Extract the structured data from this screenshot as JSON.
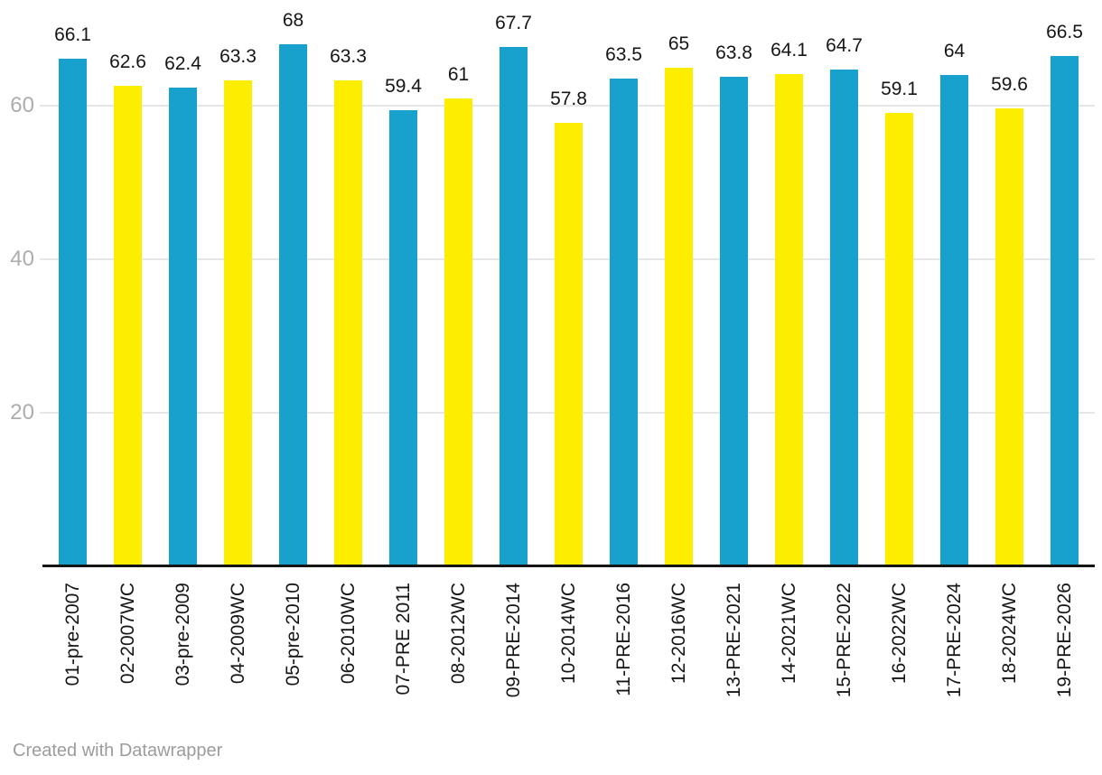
{
  "chart_data": {
    "type": "bar",
    "title": "",
    "categories": [
      "01-pre-2007",
      "02-2007WC",
      "03-pre-2009",
      "04-2009WC",
      "05-pre-2010",
      "06-2010WC",
      "07-PRE 2011",
      "08-2012WC",
      "09-PRE-2014",
      "10-2014WC",
      "11-PRE-2016",
      "12-2016WC",
      "13-PRE-2021",
      "14-2021WC",
      "15-PRE-2022",
      "16-2022WC",
      "17-PRE-2024",
      "18-2024WC",
      "19-PRE-2026"
    ],
    "values": [
      66.1,
      62.6,
      62.4,
      63.3,
      68,
      63.3,
      59.4,
      61,
      67.7,
      57.8,
      63.5,
      65,
      63.8,
      64.1,
      64.7,
      59.1,
      64,
      59.6,
      66.5
    ],
    "labels": [
      "66.1",
      "62.6",
      "62.4",
      "63.3",
      "68",
      "63.3",
      "59.4",
      "61",
      "67.7",
      "57.8",
      "63.5",
      "65",
      "63.8",
      "64.1",
      "64.7",
      "59.1",
      "64",
      "59.6",
      "66.5"
    ],
    "color_pattern": "alternate starting blue",
    "colors": {
      "series_blue": "#18a1cd",
      "series_yellow": "#fdee00",
      "value_label": "#161616",
      "x_axis_label": "#161616",
      "y_tick_label": "#adadad",
      "gridline": "#e6e6e6",
      "axis_line": "#151515"
    },
    "yticks": [
      20,
      40,
      60
    ],
    "ylim": [
      0,
      73.8
    ],
    "xlabel": "",
    "ylabel": "",
    "grid": "horizontal-only",
    "legend": "none",
    "value_labels_shown": true,
    "x_labels_rotation_degrees": -90
  },
  "footer": {
    "credit": "Created with Datawrapper"
  }
}
